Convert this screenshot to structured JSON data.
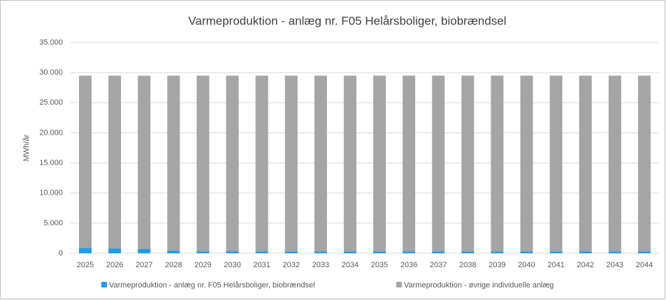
{
  "chart_data": {
    "type": "stacked_bar",
    "title": "Varmeproduktion - anlæg nr. F05 Helårsboliger, biobrændsel",
    "ylabel": "MWh/år",
    "categories": [
      "2025",
      "2026",
      "2027",
      "2028",
      "2029",
      "2030",
      "2031",
      "2032",
      "2033",
      "2034",
      "2035",
      "2036",
      "2037",
      "2038",
      "2039",
      "2040",
      "2041",
      "2042",
      "2043",
      "2044"
    ],
    "series": [
      {
        "name": "Varmeproduktion - anlæg nr. F05 Helårsboliger, biobrændsel",
        "color": "#1e9be9",
        "values": [
          900,
          800,
          700,
          400,
          300,
          300,
          300,
          300,
          300,
          300,
          300,
          300,
          300,
          300,
          300,
          300,
          300,
          300,
          300,
          300
        ]
      },
      {
        "name": "Varmeproduktion - øvrige individuelle anlæg",
        "color": "#a5a5a5",
        "values": [
          28600,
          28700,
          28800,
          29100,
          29200,
          29200,
          29200,
          29200,
          29200,
          29200,
          29200,
          29200,
          29200,
          29200,
          29200,
          29200,
          29200,
          29200,
          29200,
          29200
        ]
      }
    ],
    "ylim": [
      0,
      35000
    ],
    "yticks": [
      0,
      {
        "value": 5000,
        "label": "5.000"
      },
      {
        "value": 10000,
        "label": "10.000"
      },
      {
        "value": 15000,
        "label": "15.000"
      },
      {
        "value": 20000,
        "label": "20.000"
      },
      {
        "value": 25000,
        "label": "25.000"
      },
      {
        "value": 30000,
        "label": "30.000"
      },
      {
        "value": 35000,
        "label": "35.000"
      }
    ],
    "grid": true,
    "legend": "bottom"
  }
}
